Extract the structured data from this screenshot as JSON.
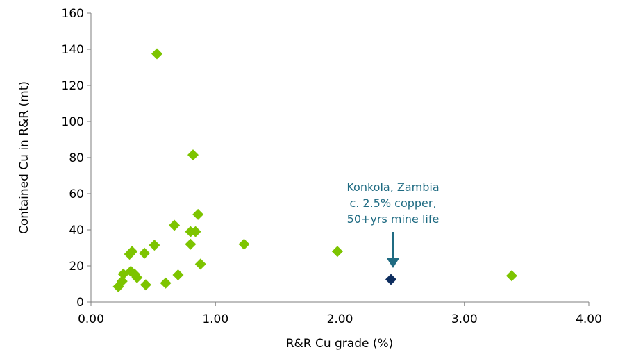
{
  "chart_data": {
    "type": "scatter",
    "xlabel": "R&R Cu grade (%)",
    "ylabel": "Contained Cu in R&R (mt)",
    "xlim": [
      0,
      4
    ],
    "ylim": [
      0,
      160
    ],
    "x_ticks": [
      "0.00",
      "1.00",
      "2.00",
      "3.00",
      "4.00"
    ],
    "y_ticks": [
      "0",
      "20",
      "40",
      "60",
      "80",
      "100",
      "120",
      "140",
      "160"
    ],
    "grid": false,
    "legend": "none",
    "series": [
      {
        "color": "#7dc400",
        "marker": "diamond",
        "points": [
          {
            "x": 0.53,
            "y": 137.5
          },
          {
            "x": 0.82,
            "y": 81.5
          },
          {
            "x": 0.86,
            "y": 48.5
          },
          {
            "x": 0.67,
            "y": 42.5
          },
          {
            "x": 0.84,
            "y": 39.0
          },
          {
            "x": 0.8,
            "y": 39.0
          },
          {
            "x": 0.8,
            "y": 32.0
          },
          {
            "x": 0.51,
            "y": 31.5
          },
          {
            "x": 1.23,
            "y": 32.0
          },
          {
            "x": 0.33,
            "y": 28.0
          },
          {
            "x": 0.31,
            "y": 26.5
          },
          {
            "x": 0.43,
            "y": 27.0
          },
          {
            "x": 1.98,
            "y": 28.0
          },
          {
            "x": 0.88,
            "y": 21.0
          },
          {
            "x": 0.26,
            "y": 15.5
          },
          {
            "x": 0.32,
            "y": 17.0
          },
          {
            "x": 0.35,
            "y": 15.5
          },
          {
            "x": 0.37,
            "y": 13.5
          },
          {
            "x": 0.7,
            "y": 15.0
          },
          {
            "x": 0.25,
            "y": 11.5
          },
          {
            "x": 0.6,
            "y": 10.5
          },
          {
            "x": 0.44,
            "y": 9.5
          },
          {
            "x": 0.22,
            "y": 8.5
          },
          {
            "x": 3.38,
            "y": 14.5
          }
        ]
      },
      {
        "color": "#0d2d5e",
        "marker": "diamond",
        "points": [
          {
            "x": 2.41,
            "y": 12.5
          }
        ]
      }
    ],
    "annotation": {
      "lines": [
        "Konkola, Zambia",
        "c. 2.5% copper,",
        "50+yrs mine life"
      ],
      "color": "#1f6b82",
      "target": {
        "x": 2.41,
        "y": 12.5
      }
    }
  }
}
